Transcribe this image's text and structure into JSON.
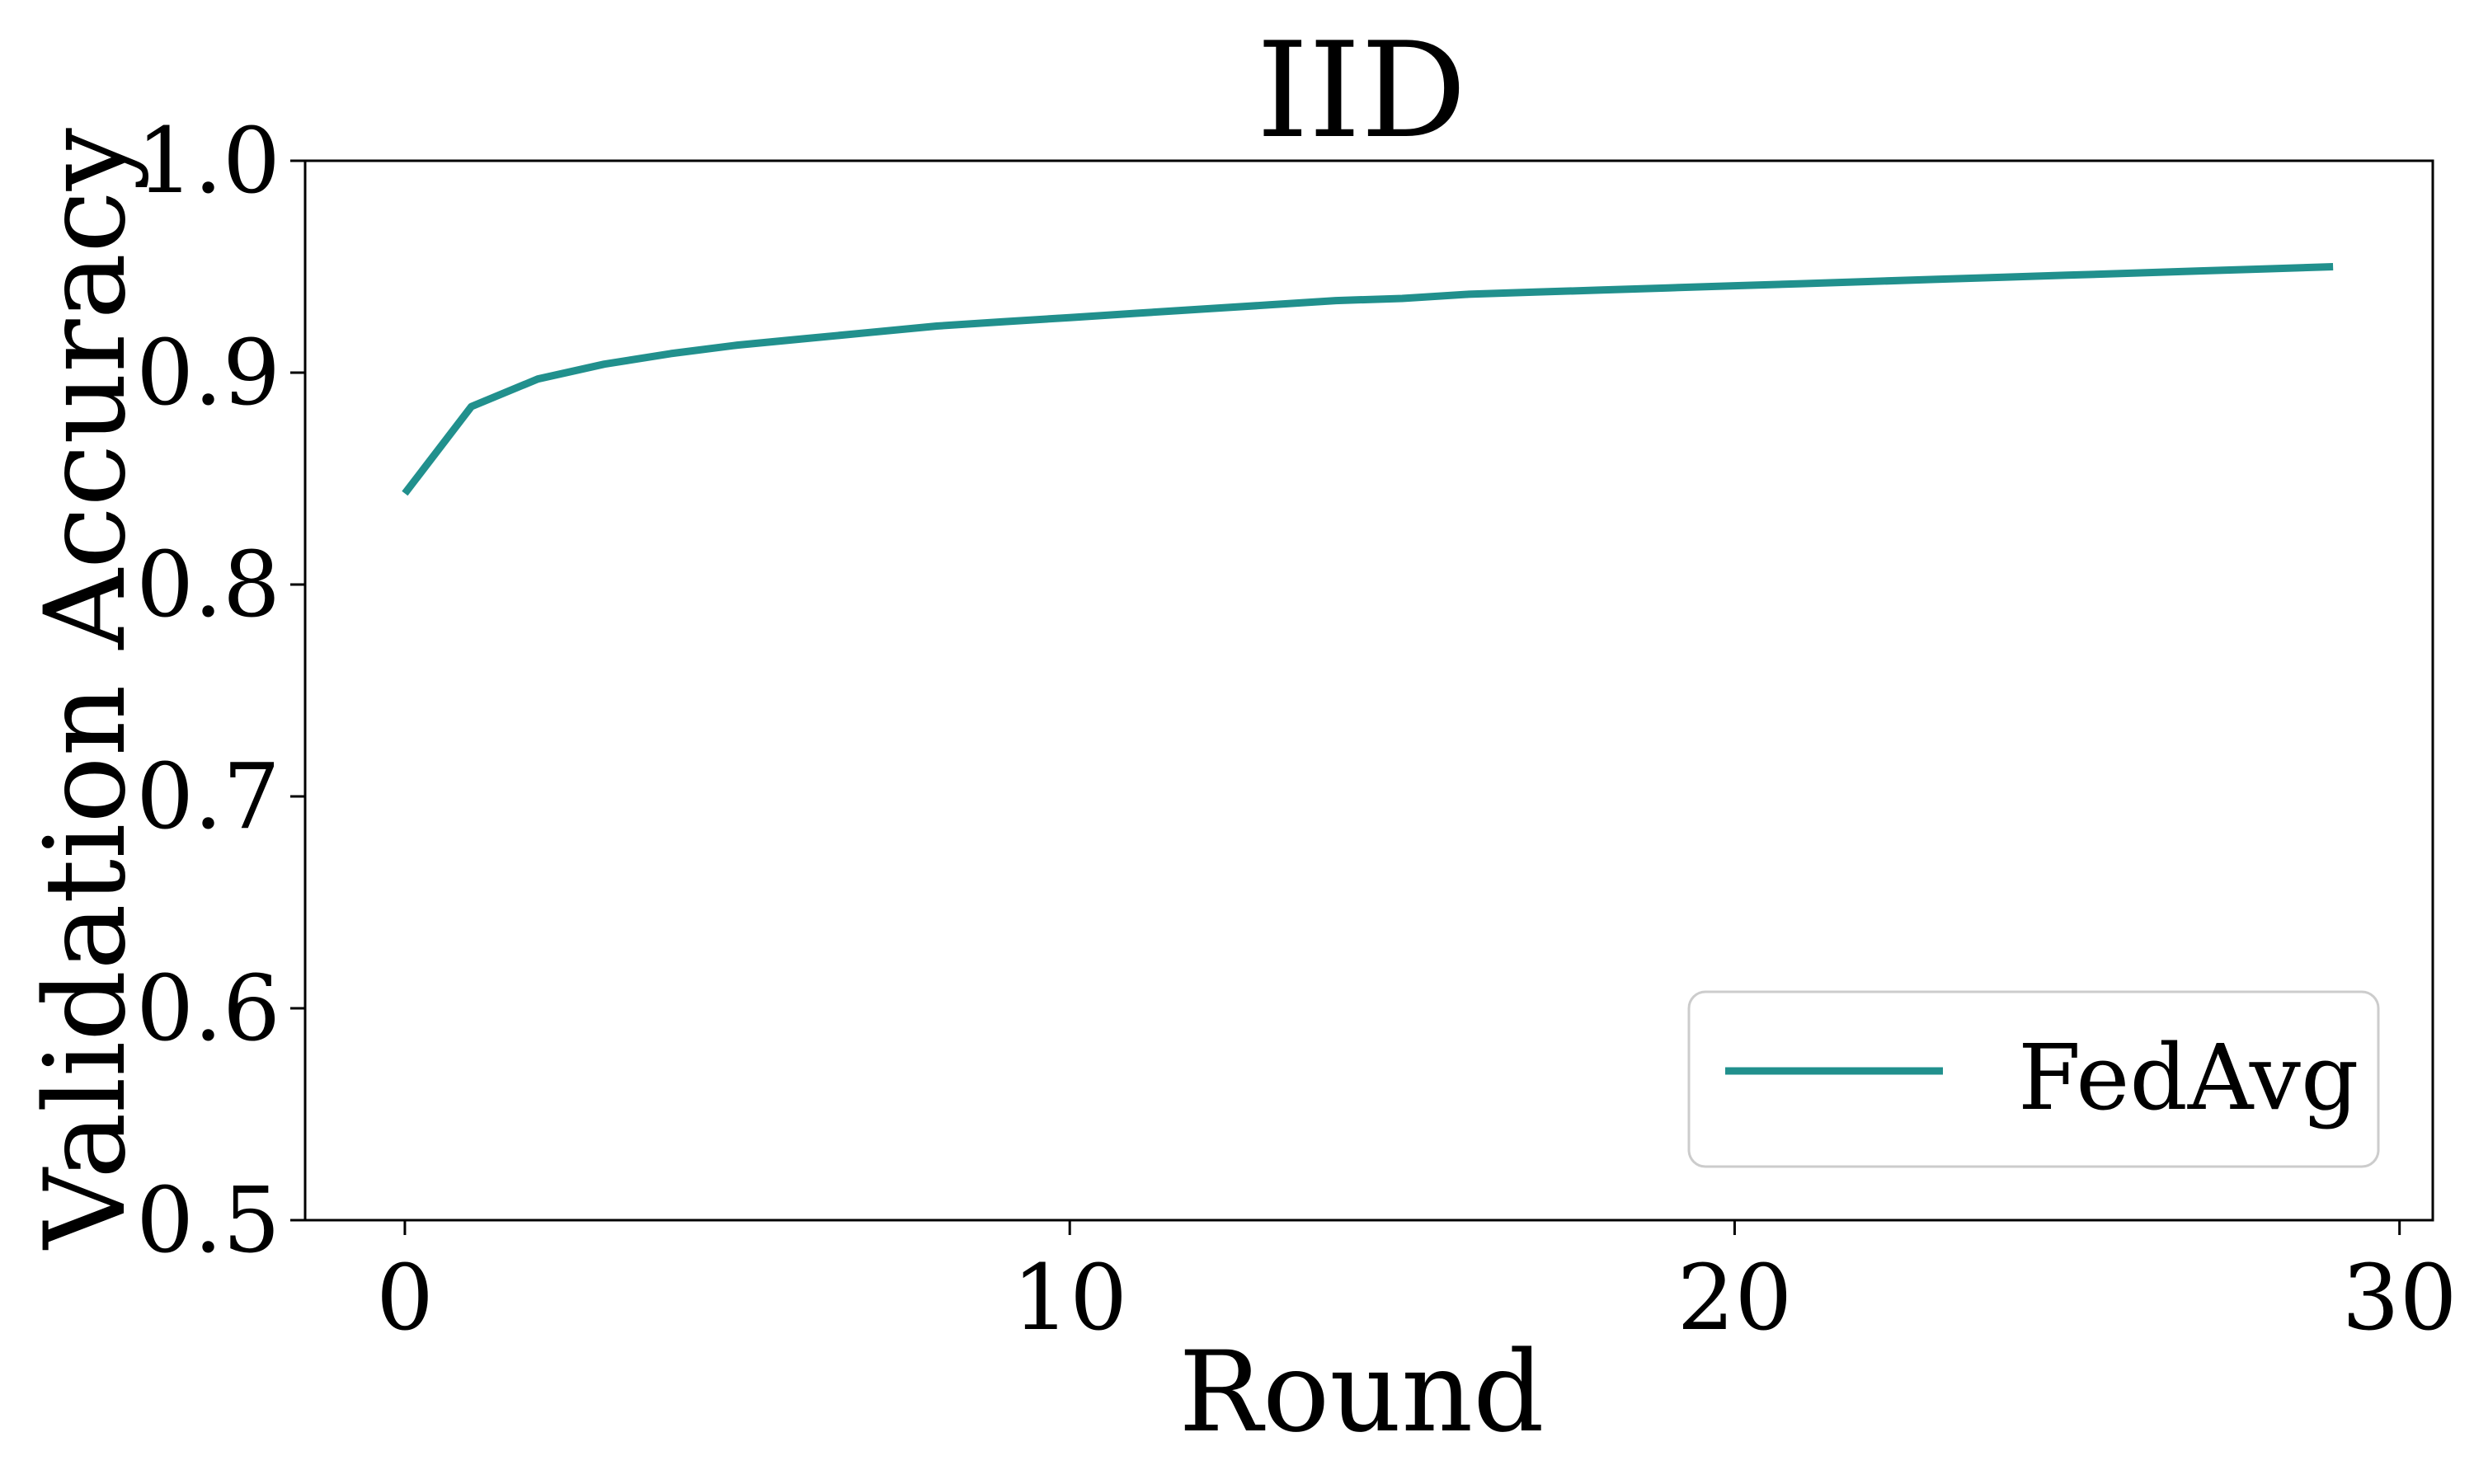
{
  "chart_data": {
    "type": "line",
    "title": "IID",
    "xlabel": "Round",
    "ylabel": "Validation Accuracy",
    "xlim": [
      -1.5,
      30.5
    ],
    "ylim": [
      0.5,
      1.0
    ],
    "xticks": [
      0,
      10,
      20,
      30
    ],
    "yticks": [
      0.5,
      0.6,
      0.7,
      0.8,
      0.9,
      1.0
    ],
    "xtick_labels": [
      "0",
      "10",
      "20",
      "30"
    ],
    "ytick_labels": [
      "0.5",
      "0.6",
      "0.7",
      "0.8",
      "0.9",
      "1.0"
    ],
    "grid": false,
    "legend_position": "bottom-right",
    "series": [
      {
        "name": "FedAvg",
        "color": "#21908d",
        "x": [
          0,
          1,
          2,
          3,
          4,
          5,
          6,
          7,
          8,
          9,
          10,
          11,
          12,
          13,
          14,
          15,
          16,
          17,
          18,
          19,
          20,
          21,
          22,
          23,
          24,
          25,
          26,
          27,
          28,
          29
        ],
        "y": [
          0.843,
          0.884,
          0.897,
          0.904,
          0.909,
          0.913,
          0.916,
          0.919,
          0.922,
          0.924,
          0.926,
          0.928,
          0.93,
          0.932,
          0.934,
          0.935,
          0.937,
          0.938,
          0.939,
          0.94,
          0.941,
          0.942,
          0.943,
          0.944,
          0.945,
          0.946,
          0.947,
          0.948,
          0.949,
          0.95
        ]
      }
    ]
  }
}
